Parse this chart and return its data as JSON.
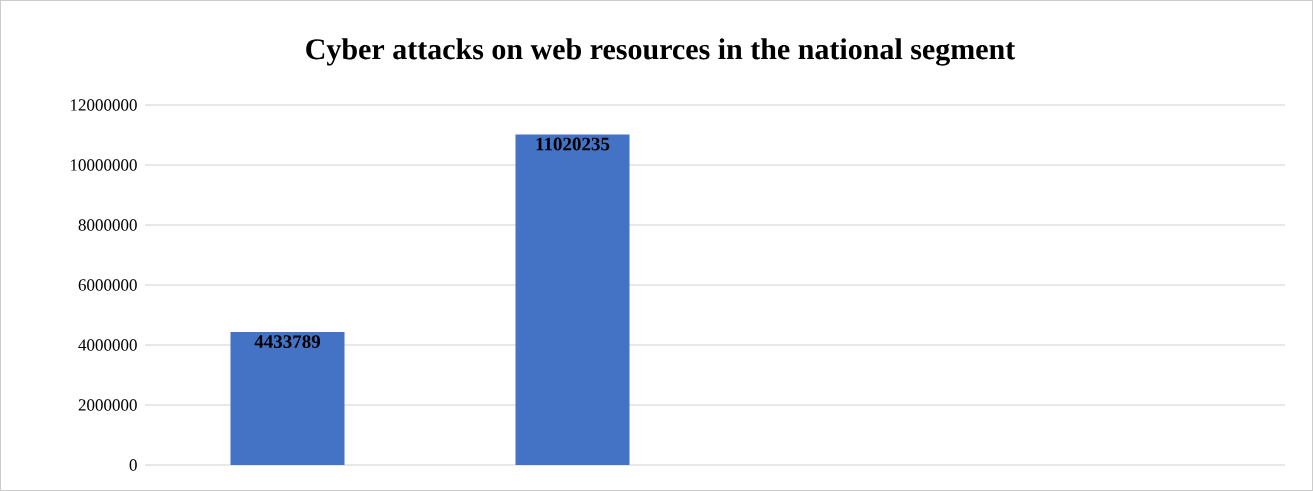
{
  "chart_data": {
    "type": "bar",
    "title": "Cyber attacks on web resources in the national segment",
    "categories": [
      null,
      null,
      null,
      null
    ],
    "values": [
      4433789,
      11020235,
      null,
      null
    ],
    "color": "#4472c4",
    "ylim": [
      0,
      12000000
    ],
    "yticks": [
      0,
      2000000,
      4000000,
      6000000,
      8000000,
      10000000,
      12000000
    ],
    "grid": "y",
    "data_labels": true,
    "tick_labels": "y"
  }
}
